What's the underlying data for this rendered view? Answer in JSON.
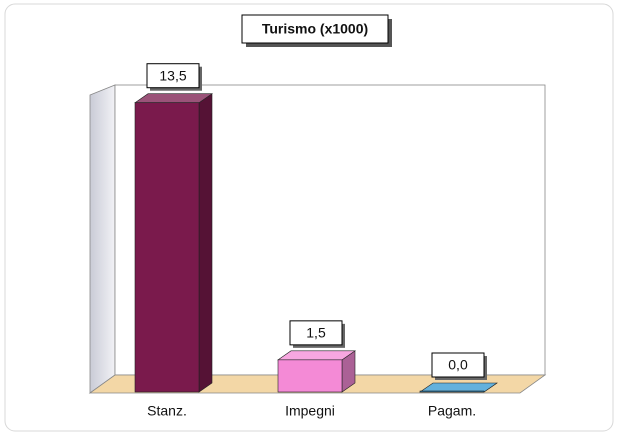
{
  "chart_data": {
    "type": "bar3d",
    "title": "Turismo (x1000)",
    "categories": [
      "Stanz.",
      "Impegni",
      "Pagam."
    ],
    "values": [
      13.5,
      1.5,
      0.0
    ],
    "value_labels": [
      "13,5",
      "1,5",
      "0,0"
    ],
    "colors": [
      "#7a1a4c",
      "#f48ad6",
      "#2f97d2"
    ],
    "ylim": [
      0,
      14
    ]
  }
}
